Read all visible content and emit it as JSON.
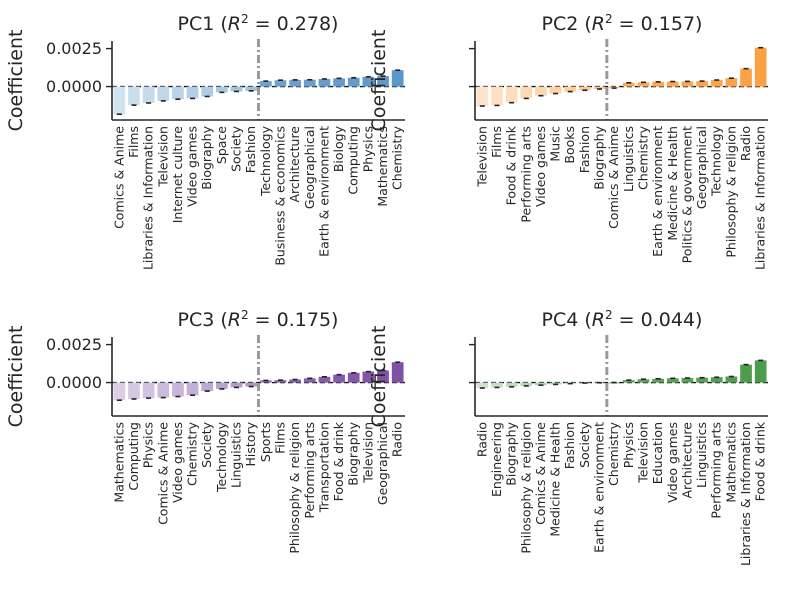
{
  "chart_data": [
    {
      "type": "bar",
      "title": "PC1 ($R^2 = 0.278$)",
      "title_prefix": "PC1 (",
      "title_r2": "0.278",
      "ylabel": "Coefficient",
      "ylim": [
        -0.0022,
        0.003
      ],
      "yticks": [
        "0.0025",
        "0.0000"
      ],
      "color": "#5b96c8",
      "split_index": 10,
      "categories": [
        "Comics & Anime",
        "Films",
        "Libraries & Information",
        "Television",
        "Internet culture",
        "Video games",
        "Biography",
        "Space",
        "Society",
        "Fashion",
        "Technology",
        "Business & economics",
        "Architecture",
        "Geographical",
        "Earth & environment",
        "Biology",
        "Computing",
        "Physics",
        "Mathematics",
        "Chemistry"
      ],
      "values": [
        -0.00182,
        -0.00122,
        -0.00108,
        -0.00094,
        -0.00083,
        -0.00078,
        -0.00065,
        -0.00038,
        -0.00032,
        -0.00028,
        0.00036,
        0.00042,
        0.00044,
        0.00045,
        0.0005,
        0.00054,
        0.00058,
        0.00064,
        0.00069,
        0.00108
      ]
    },
    {
      "type": "bar",
      "title": "PC2 ($R^2 = 0.157$)",
      "title_prefix": "PC2 (",
      "title_r2": "0.157",
      "ylabel": "Coefficient",
      "ylim": [
        -0.0022,
        0.003
      ],
      "yticks": [
        "0.0025",
        "0.0000"
      ],
      "color": "#fba042",
      "split_index": 9,
      "categories": [
        "Television",
        "Films",
        "Food & drink",
        "Performing arts",
        "Video games",
        "Music",
        "Books",
        "Fashion",
        "Biography",
        "Comics & Anime",
        "Linguistics",
        "Chemistry",
        "Earth & environment",
        "Medicine & Health",
        "Politics & government",
        "Geographical",
        "Technology",
        "Philosophy & religion",
        "Radio",
        "Libraries & Information"
      ],
      "values": [
        -0.00128,
        -0.00124,
        -0.00106,
        -0.00078,
        -0.0006,
        -0.00046,
        -0.00033,
        -0.00024,
        -0.00016,
        -0.0001,
        0.00025,
        0.00028,
        0.00031,
        0.00033,
        0.00034,
        0.00036,
        0.00043,
        0.00055,
        0.00118,
        0.00256
      ]
    },
    {
      "type": "bar",
      "title": "PC3 ($R^2 = 0.175$)",
      "title_prefix": "PC3 (",
      "title_r2": "0.175",
      "ylabel": "Coefficient",
      "ylim": [
        -0.0022,
        0.003
      ],
      "yticks": [
        "0.0025",
        "0.0000"
      ],
      "color": "#7d4fa5",
      "split_index": 10,
      "categories": [
        "Mathematics",
        "Computing",
        "Physics",
        "Comics & Anime",
        "Video games",
        "Chemistry",
        "Society",
        "Technology",
        "Linguistics",
        "History",
        "Sports",
        "Films",
        "Philosophy & religion",
        "Performing arts",
        "Transportation",
        "Food & drink",
        "Biography",
        "Television",
        "Geographical",
        "Radio"
      ],
      "values": [
        -0.00116,
        -0.00108,
        -0.00102,
        -0.00099,
        -0.00092,
        -0.00083,
        -0.00056,
        -0.00042,
        -0.00032,
        -0.00026,
        0.00014,
        0.00016,
        0.0002,
        0.00028,
        0.00038,
        0.00052,
        0.00064,
        0.00072,
        0.0008,
        0.00134
      ]
    },
    {
      "type": "bar",
      "title": "PC4 ($R^2 = 0.044$)",
      "title_prefix": "PC4 (",
      "title_r2": "0.044",
      "ylabel": "Coefficient",
      "ylim": [
        -0.0022,
        0.003
      ],
      "yticks": [
        "0.0025",
        "0.0000"
      ],
      "color": "#4b9a4b",
      "split_index": 9,
      "categories": [
        "Radio",
        "Engineering",
        "Biography",
        "Philosophy & religion",
        "Comics & Anime",
        "Medicine & Health",
        "Fashion",
        "Society",
        "Earth & environment",
        "Chemistry",
        "Physics",
        "Television",
        "Education",
        "Video games",
        "Architecture",
        "Linguistics",
        "Performing arts",
        "Mathematics",
        "Libraries & Information",
        "Food & drink"
      ],
      "values": [
        -0.00036,
        -0.00032,
        -0.00028,
        -0.00022,
        -0.00017,
        -0.00012,
        -7e-05,
        -3e-05,
        -1e-05,
        0.0,
        0.00016,
        0.00022,
        0.00025,
        0.00028,
        0.0003,
        0.00032,
        0.00035,
        0.0004,
        0.00118,
        0.00146
      ]
    }
  ]
}
